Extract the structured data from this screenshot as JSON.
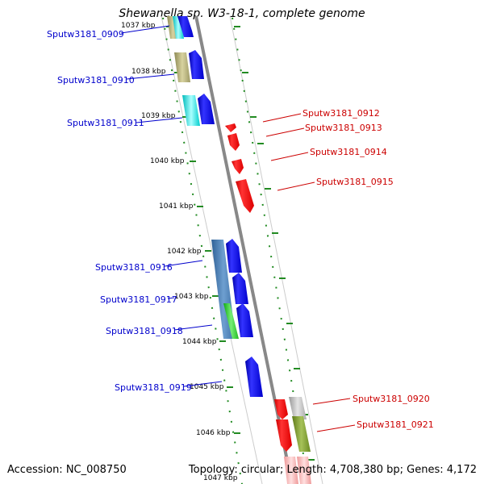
{
  "title": "Shewanella sp. W3-18-1, complete genome",
  "footer": {
    "accession": "Accession: NC_008750",
    "topology": "Topology: circular; Length: 4,708,380 bp; Genes: 4,172"
  },
  "ticks": [
    "1037 kbp",
    "1038 kbp",
    "1039 kbp",
    "1040 kbp",
    "1041 kbp",
    "1042 kbp",
    "1043 kbp",
    "1044 kbp",
    "1045 kbp",
    "1046 kbp",
    "1047 kbp"
  ],
  "genes_left": [
    "Sputw3181_0909",
    "Sputw3181_0910",
    "Sputw3181_0911",
    "Sputw3181_0916",
    "Sputw3181_0917",
    "Sputw3181_0918",
    "Sputw3181_0919"
  ],
  "genes_right": [
    "Sputw3181_0912",
    "Sputw3181_0913",
    "Sputw3181_0914",
    "Sputw3181_0915",
    "Sputw3181_0920",
    "Sputw3181_0921"
  ],
  "colors": {
    "left_label": "#0000cc",
    "right_label": "#cc0000",
    "tick": "#228b22",
    "backbone": "#888888",
    "forward_gene": "#0000ee",
    "reverse_gene": "#ee0000"
  }
}
